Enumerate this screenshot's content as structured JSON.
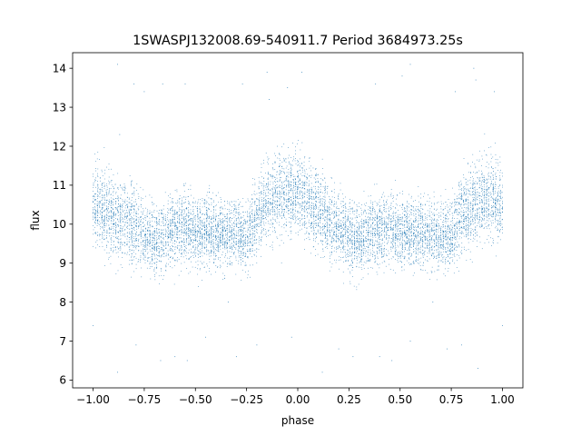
{
  "chart_data": {
    "type": "scatter",
    "title": "1SWASPJ132008.69-540911.7 Period 3684973.25s",
    "xlabel": "phase",
    "ylabel": "flux",
    "xlim": [
      -1.1,
      1.1
    ],
    "ylim": [
      5.8,
      14.4
    ],
    "x_ticks": [
      -1.0,
      -0.75,
      -0.5,
      -0.25,
      0.0,
      0.25,
      0.5,
      0.75,
      1.0
    ],
    "x_tick_labels": [
      "−1.00",
      "−0.75",
      "−0.50",
      "−0.25",
      "0.00",
      "0.25",
      "0.50",
      "0.75",
      "1.00"
    ],
    "y_ticks": [
      6,
      7,
      8,
      9,
      10,
      11,
      12,
      13,
      14
    ],
    "y_tick_labels": [
      "6",
      "7",
      "8",
      "9",
      "10",
      "11",
      "12",
      "13",
      "14"
    ],
    "grid": false,
    "point_color": "#1f77b4",
    "series": [
      {
        "phase_range": [
          -1.0,
          1.0
        ],
        "profile": {
          "phase": [
            -1.0,
            -0.95,
            -0.9,
            -0.85,
            -0.8,
            -0.75,
            -0.7,
            -0.65,
            -0.6,
            -0.55,
            -0.5,
            -0.45,
            -0.4,
            -0.35,
            -0.3,
            -0.25,
            -0.2,
            -0.15,
            -0.1,
            -0.05,
            0.0,
            0.05,
            0.1,
            0.15,
            0.2,
            0.25,
            0.3,
            0.35,
            0.4,
            0.45,
            0.5,
            0.55,
            0.6,
            0.65,
            0.7,
            0.75,
            0.8,
            0.85,
            0.9,
            0.95,
            1.0
          ],
          "flux_median": [
            10.6,
            10.4,
            10.2,
            10.1,
            10.0,
            9.7,
            9.6,
            9.7,
            9.9,
            9.9,
            9.8,
            9.8,
            9.8,
            9.7,
            9.8,
            9.6,
            10.2,
            10.5,
            10.7,
            10.8,
            10.8,
            10.6,
            10.3,
            10.1,
            9.9,
            9.7,
            9.6,
            9.7,
            9.8,
            9.9,
            9.8,
            9.8,
            9.8,
            9.7,
            9.7,
            9.7,
            10.2,
            10.5,
            10.6,
            10.7,
            10.6
          ],
          "flux_spread": [
            0.6,
            0.6,
            0.6,
            0.6,
            0.6,
            0.5,
            0.5,
            0.5,
            0.5,
            0.5,
            0.5,
            0.5,
            0.5,
            0.5,
            0.5,
            0.5,
            0.6,
            0.6,
            0.6,
            0.6,
            0.6,
            0.6,
            0.6,
            0.6,
            0.5,
            0.5,
            0.5,
            0.5,
            0.5,
            0.5,
            0.5,
            0.5,
            0.5,
            0.5,
            0.5,
            0.5,
            0.6,
            0.6,
            0.6,
            0.6,
            0.6
          ]
        },
        "n_points": 9000,
        "outliers": [
          {
            "x": -0.88,
            "y": 14.1
          },
          {
            "x": -0.87,
            "y": 12.3
          },
          {
            "x": -0.8,
            "y": 13.6
          },
          {
            "x": -0.75,
            "y": 13.4
          },
          {
            "x": -0.66,
            "y": 13.6
          },
          {
            "x": -0.55,
            "y": 13.6
          },
          {
            "x": -0.27,
            "y": 13.6
          },
          {
            "x": -0.15,
            "y": 13.9
          },
          {
            "x": -0.14,
            "y": 13.2
          },
          {
            "x": -0.05,
            "y": 13.5
          },
          {
            "x": 0.02,
            "y": 13.9
          },
          {
            "x": 0.38,
            "y": 13.6
          },
          {
            "x": 0.51,
            "y": 13.8
          },
          {
            "x": 0.55,
            "y": 14.1
          },
          {
            "x": 0.77,
            "y": 13.4
          },
          {
            "x": 0.86,
            "y": 14.0
          },
          {
            "x": 0.87,
            "y": 13.7
          },
          {
            "x": 0.96,
            "y": 13.4
          },
          {
            "x": -0.88,
            "y": 6.2
          },
          {
            "x": -0.79,
            "y": 6.9
          },
          {
            "x": -0.67,
            "y": 6.5
          },
          {
            "x": -0.6,
            "y": 6.6
          },
          {
            "x": -0.54,
            "y": 6.5
          },
          {
            "x": -0.45,
            "y": 7.1
          },
          {
            "x": -0.3,
            "y": 6.6
          },
          {
            "x": -0.2,
            "y": 6.9
          },
          {
            "x": -0.03,
            "y": 7.1
          },
          {
            "x": 0.12,
            "y": 6.2
          },
          {
            "x": 0.2,
            "y": 6.8
          },
          {
            "x": 0.27,
            "y": 6.6
          },
          {
            "x": 0.4,
            "y": 6.6
          },
          {
            "x": 0.46,
            "y": 6.5
          },
          {
            "x": 0.55,
            "y": 7.0
          },
          {
            "x": 0.73,
            "y": 6.8
          },
          {
            "x": 0.8,
            "y": 6.9
          },
          {
            "x": 0.88,
            "y": 6.3
          },
          {
            "x": -1.0,
            "y": 7.4
          },
          {
            "x": 1.0,
            "y": 7.4
          },
          {
            "x": -0.34,
            "y": 8.0
          },
          {
            "x": 0.66,
            "y": 8.0
          }
        ]
      }
    ]
  }
}
